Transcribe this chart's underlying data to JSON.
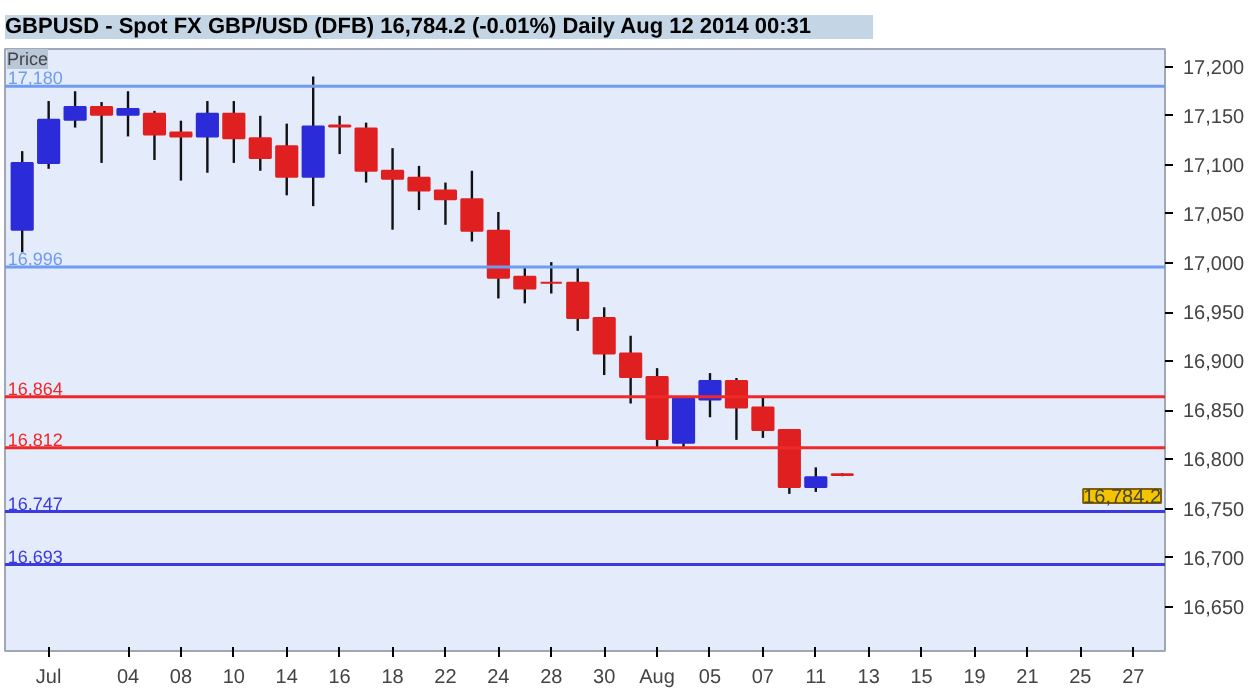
{
  "chart_data": {
    "type": "candlestick",
    "title": "GBPUSD - Spot FX GBP/USD (DFB)     16,784.2 (-0.01%)     Daily   Aug 12 2014 00:31",
    "ylabel": "Price",
    "categories": [
      null,
      "Jul",
      null,
      null,
      "04",
      null,
      "08",
      null,
      "10",
      null,
      "14",
      null,
      "16",
      null,
      "18",
      null,
      "22",
      null,
      "24",
      null,
      "28",
      null,
      "30",
      null,
      "Aug",
      null,
      "05",
      null,
      "07",
      null,
      "11",
      null,
      "13",
      null,
      "15",
      null,
      "19",
      null,
      "21",
      null,
      "25",
      null,
      "27",
      null
    ],
    "ohlc": [
      [
        17034,
        17114,
        17011,
        17102
      ],
      [
        17102,
        17165,
        17096,
        17146
      ],
      [
        17146,
        17175,
        17138,
        17159
      ],
      [
        17159,
        17164,
        17102,
        17151
      ],
      [
        17151,
        17175,
        17129,
        17157
      ],
      [
        17152,
        17155,
        17105,
        17131
      ],
      [
        17133,
        17145,
        17084,
        17129
      ],
      [
        17129,
        17165,
        17092,
        17152
      ],
      [
        17152,
        17165,
        17102,
        17127
      ],
      [
        17127,
        17150,
        17094,
        17107
      ],
      [
        17119,
        17142,
        17069,
        17088
      ],
      [
        17088,
        17190,
        17058,
        17139
      ],
      [
        17140,
        17150,
        17111,
        17139
      ],
      [
        17137,
        17143,
        17082,
        17094
      ],
      [
        17094,
        17117,
        17034,
        17086
      ],
      [
        17087,
        17099,
        17054,
        17074
      ],
      [
        17074,
        17082,
        17039,
        17065
      ],
      [
        17065,
        17094,
        17022,
        17033
      ],
      [
        17033,
        17052,
        16964,
        16985
      ],
      [
        16986,
        16997,
        16959,
        16974
      ],
      [
        16980,
        17001,
        16969,
        16980
      ],
      [
        16980,
        16996,
        16931,
        16944
      ],
      [
        16944,
        16955,
        16886,
        16908
      ],
      [
        16908,
        16926,
        16857,
        16884
      ],
      [
        16884,
        16893,
        16811,
        16821
      ],
      [
        16817,
        16862,
        16811,
        16862
      ],
      [
        16861,
        16888,
        16843,
        16880
      ],
      [
        16880,
        16883,
        16820,
        16853
      ],
      [
        16853,
        16863,
        16822,
        16830
      ],
      [
        16830,
        16831,
        16765,
        16772
      ],
      [
        16772,
        16792,
        16767,
        16782
      ],
      [
        16785,
        16786,
        16783,
        16784.2
      ],
      null,
      null,
      null,
      null,
      null,
      null,
      null,
      null,
      null,
      null,
      null,
      null
    ],
    "colors": [
      "#2b2bd9",
      "#2b2bd9",
      "#2b2bd9",
      "#e02020",
      "#2b2bd9",
      "#e02020",
      "#e02020",
      "#2b2bd9",
      "#e02020",
      "#e02020",
      "#e02020",
      "#2b2bd9",
      "#e02020",
      "#e02020",
      "#e02020",
      "#e02020",
      "#e02020",
      "#e02020",
      "#e02020",
      "#e02020",
      "#e02020",
      "#e02020",
      "#e02020",
      "#e02020",
      "#e02020",
      "#2b2bd9",
      "#2b2bd9",
      "#e02020",
      "#e02020",
      "#e02020",
      "#2b2bd9",
      "#e02020",
      null,
      null,
      null,
      null,
      null,
      null,
      null,
      null,
      null,
      null,
      null,
      null
    ],
    "ylim": [
      16605,
      17218
    ],
    "yticks": [
      {
        "value": 16650,
        "label": "16,650"
      },
      {
        "value": 16700,
        "label": "16,700"
      },
      {
        "value": 16750,
        "label": "16,750"
      },
      {
        "value": 16800,
        "label": "16,800"
      },
      {
        "value": 16850,
        "label": "16,850"
      },
      {
        "value": 16900,
        "label": "16,900"
      },
      {
        "value": 16950,
        "label": "16,950"
      },
      {
        "value": 17000,
        "label": "17,000"
      },
      {
        "value": 17050,
        "label": "17,050"
      },
      {
        "value": 17100,
        "label": "17,100"
      },
      {
        "value": 17150,
        "label": "17,150"
      },
      {
        "value": 17200,
        "label": "17,200"
      }
    ],
    "ref_lines": [
      {
        "axis": "y",
        "value": 17180,
        "label": "17,180",
        "color": "#6f9cf0"
      },
      {
        "axis": "y",
        "value": 16996,
        "label": "16,996",
        "color": "#6f9cf0"
      },
      {
        "axis": "y",
        "value": 16864,
        "label": "16,864",
        "color": "#f02828"
      },
      {
        "axis": "y",
        "value": 16812,
        "label": "16,812",
        "color": "#f02828"
      },
      {
        "axis": "y",
        "value": 16747,
        "label": "16,747",
        "color": "#3a3ae0"
      },
      {
        "axis": "y",
        "value": 16693,
        "label": "16,693",
        "color": "#3a3ae0"
      }
    ],
    "annotations": [
      "16,784.2"
    ],
    "grid": false
  }
}
